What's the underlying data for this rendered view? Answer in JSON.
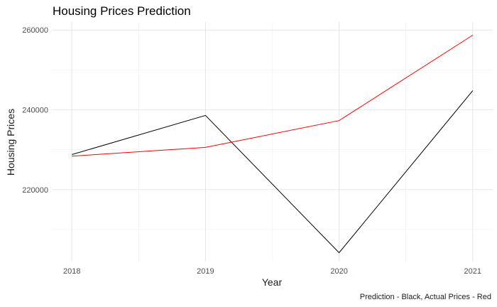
{
  "chart_data": {
    "type": "line",
    "title": "Housing Prices Prediction",
    "xlabel": "Year",
    "ylabel": "Housing Prices",
    "caption": "Prediction - Black, Actual Prices - Red",
    "x": [
      2018,
      2019,
      2020,
      2021
    ],
    "x_tick_labels": [
      "2018",
      "2019",
      "2020",
      "2021"
    ],
    "y_ticks": [
      220000,
      240000,
      260000
    ],
    "y_tick_labels": [
      "220000",
      "240000",
      "260000"
    ],
    "xlim": [
      2017.85,
      2021.15
    ],
    "ylim": [
      202000,
      262000
    ],
    "grid": true,
    "legend": "none",
    "series": [
      {
        "color": "#000000",
        "values": [
          228800,
          238600,
          204200,
          244800
        ]
      },
      {
        "color": "#ff0000",
        "values": [
          228400,
          230600,
          237300,
          258700
        ]
      }
    ]
  }
}
